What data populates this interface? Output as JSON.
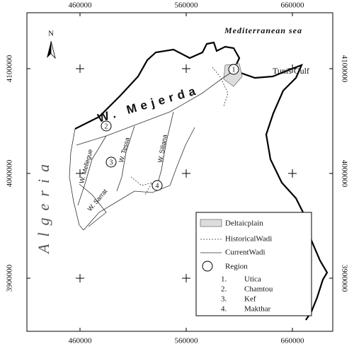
{
  "map": {
    "north": "N",
    "sea_label": "Mediterranean sea",
    "country_label": "Algeria",
    "gulf_label": "Tunis Gulf",
    "x_ticks": [
      "460000",
      "560000",
      "660000"
    ],
    "y_ticks": [
      "4100000",
      "4000000",
      "3900000"
    ],
    "rivers": [
      "W. Mejerda",
      "W. Mellegue",
      "W. Tessa",
      "W. Siliana",
      "W. Sarrat"
    ],
    "regions": [
      "1",
      "2",
      "3",
      "4"
    ],
    "legend": {
      "items": [
        "Deltaicplain",
        "HistoricalWadi",
        "CurrentWadi",
        "Region"
      ],
      "regions": [
        {
          "number": "1.",
          "name": "Utica"
        },
        {
          "number": "2.",
          "name": "Chamtou"
        },
        {
          "number": "3.",
          "name": "Kef"
        },
        {
          "number": "4.",
          "name": "Makthar"
        }
      ]
    }
  }
}
